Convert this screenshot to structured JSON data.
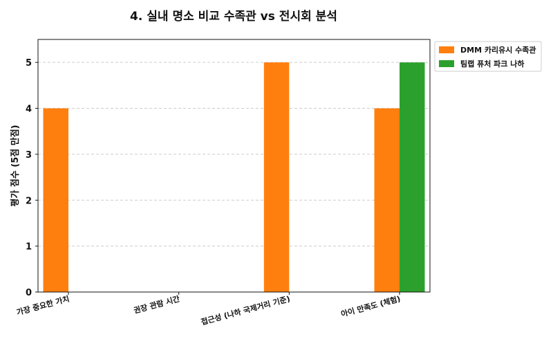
{
  "chart_data": {
    "type": "bar",
    "title": "4. 실내 명소 비교 수족관 vs 전시회 분석",
    "xlabel": "",
    "ylabel": "평가 점수 (5점 만점)",
    "ylim": [
      0,
      5.5
    ],
    "yticks": [
      0,
      1,
      2,
      3,
      4,
      5
    ],
    "grid": true,
    "legend_position": "outside-top-right",
    "categories": [
      "가장 중요한 가치",
      "권장 관람 시간",
      "접근성 (나하 국제거리 기준)",
      "아이 만족도 (체험)"
    ],
    "series": [
      {
        "name": "DMM 카리유시 수족관",
        "color": "#ff7f0e",
        "values": [
          4,
          null,
          5,
          4
        ]
      },
      {
        "name": "팀랩 퓨처 파크 나하",
        "color": "#2ca02c",
        "values": [
          null,
          null,
          null,
          5
        ]
      }
    ]
  }
}
